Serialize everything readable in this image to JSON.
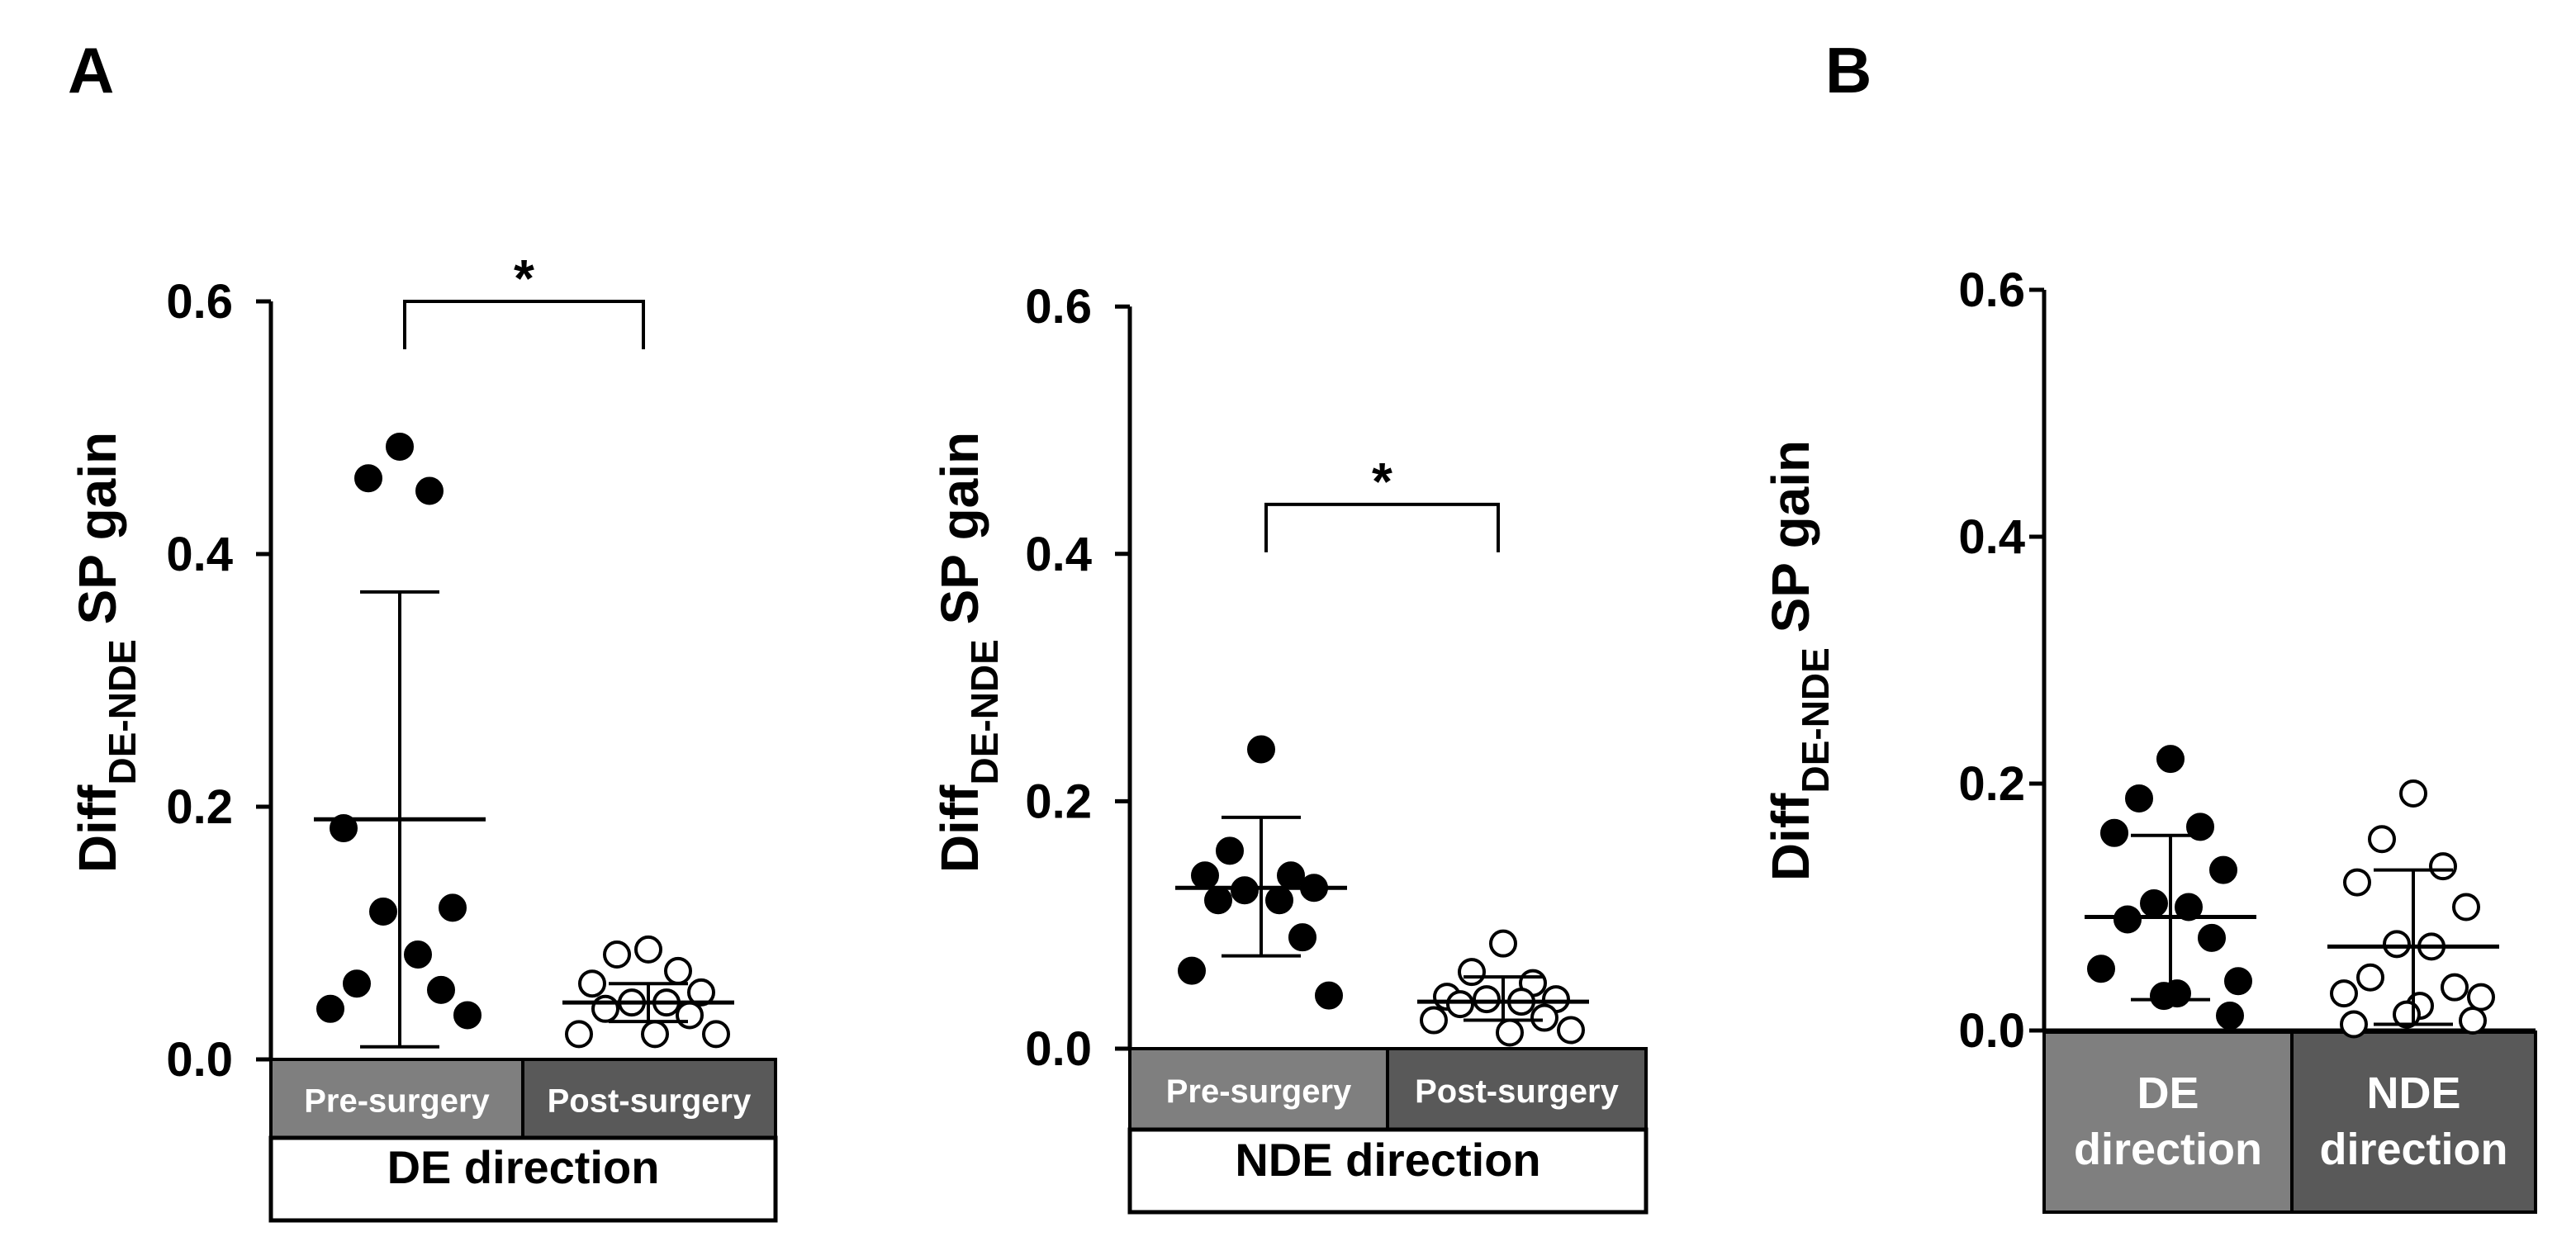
{
  "panel_labels": [
    "A",
    "B"
  ],
  "colors": {
    "axis": "#000000",
    "box_light": "#7f7f7f",
    "box_dark": "#595959",
    "box_text": "#ffffff",
    "marker": "#000000"
  },
  "chart_data": [
    {
      "type": "scatter",
      "panel": "A",
      "ylabel_main": "Diff",
      "ylabel_sub": "DE-NDE",
      "ylabel_rest": " SP gain",
      "ylim": [
        0,
        0.6
      ],
      "yticks": [
        "0.0",
        "0.2",
        "0.4",
        "0.6"
      ],
      "groups": [
        {
          "name": "Pre-surgery",
          "filled": true,
          "mean": 0.19,
          "sd_low": 0.01,
          "sd_high": 0.37,
          "values": [
            0.485,
            0.46,
            0.45,
            0.183,
            0.12,
            0.117,
            0.083,
            0.06,
            0.055,
            0.04,
            0.035
          ]
        },
        {
          "name": "Post-surgery",
          "filled": false,
          "mean": 0.045,
          "sd_low": 0.03,
          "sd_high": 0.06,
          "values": [
            0.087,
            0.083,
            0.07,
            0.06,
            0.053,
            0.045,
            0.045,
            0.04,
            0.035,
            0.02,
            0.02,
            0.02
          ]
        }
      ],
      "group_title": "DE direction",
      "significance": {
        "label": "*",
        "level": 0.6
      }
    },
    {
      "type": "scatter",
      "panel": "A",
      "ylabel_main": "Diff",
      "ylabel_sub": "DE-NDE",
      "ylabel_rest": " SP gain",
      "ylim": [
        0,
        0.6
      ],
      "yticks": [
        "0.0",
        "0.2",
        "0.4",
        "0.6"
      ],
      "groups": [
        {
          "name": "Pre-surgery",
          "filled": true,
          "mean": 0.13,
          "sd_low": 0.075,
          "sd_high": 0.187,
          "values": [
            0.242,
            0.16,
            0.14,
            0.14,
            0.13,
            0.128,
            0.12,
            0.12,
            0.09,
            0.063,
            0.043
          ]
        },
        {
          "name": "Post-surgery",
          "filled": false,
          "mean": 0.038,
          "sd_low": 0.023,
          "sd_high": 0.058,
          "values": [
            0.085,
            0.062,
            0.053,
            0.042,
            0.04,
            0.04,
            0.038,
            0.036,
            0.025,
            0.023,
            0.015,
            0.013
          ]
        }
      ],
      "group_title": "NDE direction",
      "significance": {
        "label": "*",
        "level": 0.44
      }
    },
    {
      "type": "scatter",
      "panel": "B",
      "ylabel_main": "Diff",
      "ylabel_sub": "DE-NDE",
      "ylabel_rest": " SP gain",
      "ylim": [
        0,
        0.6
      ],
      "yticks": [
        "0.0",
        "0.2",
        "0.4",
        "0.6"
      ],
      "groups": [
        {
          "name": "DE direction",
          "name_lines": [
            "DE",
            "direction"
          ],
          "filled": true,
          "mean": 0.092,
          "sd_low": 0.025,
          "sd_high": 0.158,
          "values": [
            0.22,
            0.188,
            0.165,
            0.16,
            0.13,
            0.103,
            0.1,
            0.09,
            0.075,
            0.05,
            0.04,
            0.03,
            0.028,
            0.012
          ]
        },
        {
          "name": "NDE direction",
          "name_lines": [
            "NDE",
            "direction"
          ],
          "filled": false,
          "mean": 0.068,
          "sd_low": 0.005,
          "sd_high": 0.13,
          "values": [
            0.192,
            0.155,
            0.133,
            0.12,
            0.1,
            0.07,
            0.068,
            0.043,
            0.035,
            0.03,
            0.027,
            0.02,
            0.013,
            0.008,
            0.005
          ]
        }
      ]
    }
  ]
}
